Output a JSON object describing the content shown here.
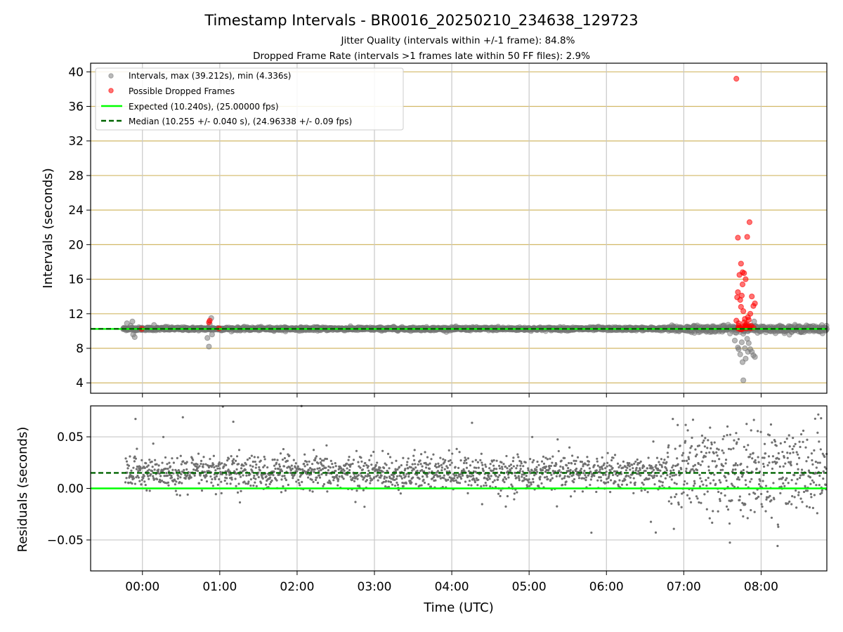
{
  "chart_data": [
    {
      "type": "scatter",
      "title": "Timestamp Intervals - BR0016_20250210_234638_129723",
      "subtitle_lines": [
        "Jitter Quality (intervals within +/-1 frame): 84.8%",
        "Dropped Frame Rate (intervals >1 frames late within 50 FF files): 2.9%"
      ],
      "xlabel": "",
      "ylabel": "Intervals (seconds)",
      "x_unit": "hours UTC",
      "xlim": [
        -0.67,
        8.85
      ],
      "ylim": [
        2.8,
        41.0
      ],
      "yticks": [
        4,
        8,
        12,
        16,
        20,
        24,
        28,
        32,
        36,
        40
      ],
      "grid": true,
      "legend_position": "top-left",
      "series": [
        {
          "name": "Intervals, max (39.212s), min (4.336s)",
          "color": "#808080",
          "x_start": -0.25,
          "x_end": 8.85,
          "baseline": 10.255
        },
        {
          "name": "Possible Dropped Frames",
          "color": "#ff0000",
          "x": [
            7.68,
            7.7,
            7.72,
            7.74,
            7.76,
            7.78,
            7.8,
            7.82,
            7.85,
            7.88,
            7.9,
            7.92,
            7.7,
            7.73,
            7.75,
            7.77,
            7.79,
            7.81,
            7.83,
            7.86,
            7.69,
            7.74,
            7.78,
            7.84,
            7.71,
            7.76,
            7.8,
            7.83,
            7.87,
            7.72,
            7.77,
            7.82,
            7.7,
            7.75,
            7.79,
            7.86,
            7.73,
            7.81,
            7.68,
            7.76,
            7.85,
            7.9,
            7.71,
            -0.01,
            0.86,
            0.99,
            0.87
          ],
          "y": [
            39.2,
            20.8,
            16.5,
            17.8,
            15.4,
            16.7,
            16.0,
            20.9,
            22.6,
            14.0,
            12.9,
            13.2,
            14.5,
            13.6,
            14.1,
            12.3,
            11.4,
            10.8,
            11.6,
            12.0,
            13.9,
            12.8,
            11.0,
            11.3,
            10.6,
            10.5,
            10.7,
            10.4,
            10.6,
            10.4,
            10.3,
            10.5,
            10.3,
            10.2,
            10.4,
            10.3,
            10.2,
            10.3,
            11.2,
            16.8,
            10.5,
            10.4,
            10.9,
            10.25,
            11.0,
            10.3,
            11.2
          ]
        },
        {
          "name": "Expected (10.240s), (25.00000 fps)",
          "color": "#00ff00",
          "style": "solid",
          "y": 10.24
        },
        {
          "name": "Median (10.255 +/- 0.040 s), (24.96338 +/- 0.09 fps)",
          "color": "#006400",
          "style": "dashed",
          "y": 10.255
        }
      ]
    },
    {
      "type": "scatter",
      "xlabel": "Time (UTC)",
      "ylabel": "Residuals (seconds)",
      "x_unit": "hours UTC",
      "xlim": [
        -0.67,
        8.85
      ],
      "ylim": [
        -0.08,
        0.08
      ],
      "xticks": [
        0,
        1,
        2,
        3,
        4,
        5,
        6,
        7,
        8
      ],
      "xtick_labels": [
        "00:00",
        "01:00",
        "02:00",
        "03:00",
        "04:00",
        "05:00",
        "06:00",
        "07:00",
        "08:00"
      ],
      "yticks": [
        -0.05,
        0.0,
        0.05
      ],
      "ytick_labels": [
        "−0.05",
        "0.00",
        "0.05"
      ],
      "grid": true,
      "series": [
        {
          "name": "residuals",
          "color": "#707070",
          "x_start": -0.22,
          "x_end": 8.85,
          "center": 0.015
        },
        {
          "name": "expected",
          "color": "#00ff00",
          "style": "solid",
          "y": 0.0
        },
        {
          "name": "median",
          "color": "#006400",
          "style": "dashed",
          "y": 0.015
        }
      ]
    }
  ]
}
